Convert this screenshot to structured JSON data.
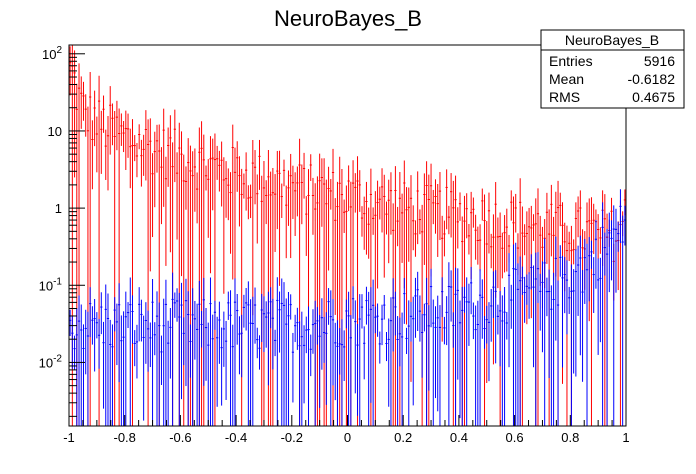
{
  "chart_data": {
    "type": "histogram",
    "title": "NeuroBayes_B",
    "xlabel": "",
    "ylabel": "",
    "xlim": [
      -1,
      1
    ],
    "ylim": [
      0.0015,
      130
    ],
    "y_scale": "log",
    "grid": false,
    "x_ticks": [
      {
        "value": -1,
        "label": "-1"
      },
      {
        "value": -0.8,
        "label": "-0.8"
      },
      {
        "value": -0.6,
        "label": "-0.6"
      },
      {
        "value": -0.4,
        "label": "-0.4"
      },
      {
        "value": -0.2,
        "label": "-0.2"
      },
      {
        "value": 0,
        "label": "0"
      },
      {
        "value": 0.2,
        "label": "0.2"
      },
      {
        "value": 0.4,
        "label": "0.4"
      },
      {
        "value": 0.6,
        "label": "0.6"
      },
      {
        "value": 0.8,
        "label": "0.8"
      },
      {
        "value": 1,
        "label": "1"
      }
    ],
    "y_ticks": [
      {
        "value": 0.01,
        "base": "10",
        "exp": "-2"
      },
      {
        "value": 0.1,
        "base": "10",
        "exp": "-1"
      },
      {
        "value": 1,
        "base": "1",
        "exp": ""
      },
      {
        "value": 10,
        "base": "10",
        "exp": ""
      },
      {
        "value": 100,
        "base": "10",
        "exp": "2"
      }
    ],
    "series": [
      {
        "color": "#ff0000",
        "style": "error-bars",
        "x": [
          -0.99,
          -0.97,
          -0.95,
          -0.9,
          -0.85,
          -0.8,
          -0.7,
          -0.6,
          -0.5,
          -0.4,
          -0.3,
          -0.2,
          -0.1,
          0.0,
          0.1,
          0.2,
          0.3,
          0.4,
          0.5,
          0.6,
          0.7,
          0.8,
          0.9,
          0.97,
          1.0
        ],
        "values": [
          60,
          30,
          18,
          13,
          10,
          8,
          6,
          4.5,
          3.5,
          2.8,
          2.3,
          1.9,
          1.6,
          1.4,
          1.2,
          1.0,
          0.9,
          0.8,
          0.7,
          0.62,
          0.55,
          0.5,
          0.45,
          0.45,
          0.8
        ]
      },
      {
        "color": "#0000ff",
        "style": "error-bars",
        "x": [
          -1.0,
          -0.8,
          -0.6,
          -0.4,
          -0.2,
          0.0,
          0.2,
          0.4,
          0.5,
          0.6,
          0.7,
          0.8,
          0.85,
          0.9,
          0.95,
          1.0
        ],
        "values": [
          0.03,
          0.03,
          0.03,
          0.03,
          0.03,
          0.035,
          0.04,
          0.05,
          0.06,
          0.075,
          0.09,
          0.13,
          0.17,
          0.25,
          0.4,
          0.65
        ]
      }
    ]
  },
  "stats_box": {
    "title": "NeuroBayes_B",
    "rows": [
      {
        "label": "Entries",
        "value": "5916"
      },
      {
        "label": "Mean",
        "value": "-0.6182"
      },
      {
        "label": "RMS",
        "value": "0.4675"
      }
    ]
  }
}
